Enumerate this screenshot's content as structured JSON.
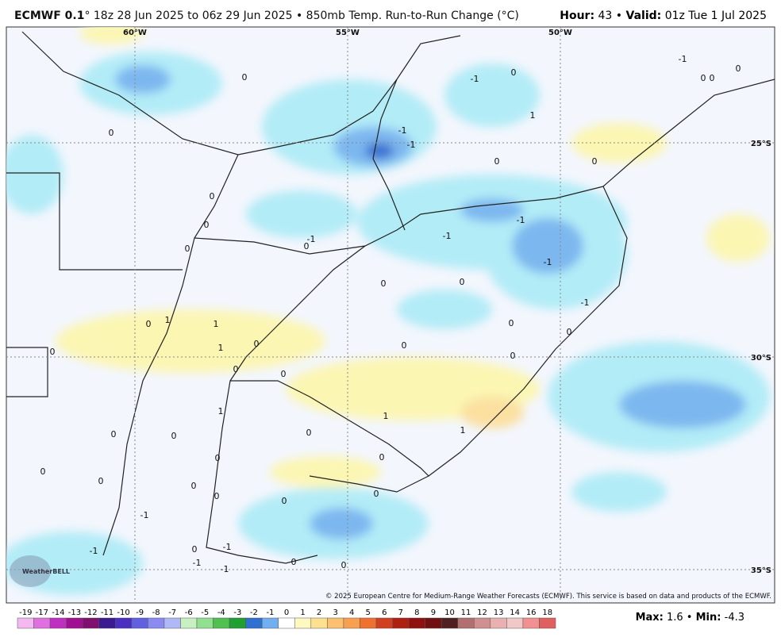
{
  "header": {
    "model": "ECMWF 0.1",
    "title": "° 18z 28 Jun 2025 to 06z 29 Jun 2025 • 850mb Temp. Run-to-Run Change (°C)",
    "hour_label": "Hour:",
    "hour": "43 •",
    "valid_label": "Valid:",
    "valid": "01z Tue 1 Jul 2025"
  },
  "map": {
    "lon_labels": [
      "60°W",
      "55°W",
      "50°W"
    ],
    "lat_labels": [
      "25°S",
      "30°S",
      "35°S"
    ],
    "contour_labels": [
      "0",
      "0",
      "0",
      "0",
      "0",
      "0",
      "1",
      "1",
      "1",
      "0",
      "0",
      "0",
      "0",
      "0",
      "0",
      "0",
      "0",
      "0",
      "0",
      "-1",
      "-1",
      "-1",
      "-1",
      "-1",
      "0",
      "-1",
      "-1",
      "0",
      "0",
      "-1",
      "0",
      "1",
      "-1",
      "0",
      "0",
      "0",
      "1",
      "1",
      "0",
      "0",
      "0",
      "0",
      "0",
      "0",
      "0",
      "0",
      "0",
      "0",
      "0",
      "-1",
      "-1",
      "-1",
      "-1",
      "0",
      "0",
      "0",
      "-1",
      "1"
    ],
    "copyright": "© 2025 European Centre for Medium-Range Weather Forecasts (ECMWF). This service is based on data and products of the ECMWF.",
    "logo": "WeatherBELL"
  },
  "colorbar": {
    "labels": [
      "-19",
      "-17",
      "-14",
      "-13",
      "-12",
      "-11",
      "-10",
      "-9",
      "-8",
      "-7",
      "-6",
      "-5",
      "-4",
      "-3",
      "-2",
      "-1",
      "0",
      "1",
      "2",
      "3",
      "4",
      "5",
      "6",
      "7",
      "8",
      "9",
      "10",
      "11",
      "12",
      "13",
      "14",
      "16",
      "18"
    ],
    "colors": [
      "#f4b8f0",
      "#e070e0",
      "#c030c0",
      "#a01090",
      "#801070",
      "#3a1a90",
      "#4a30c0",
      "#6060e0",
      "#8a8af0",
      "#b0b8f8",
      "#c8f0c0",
      "#90e090",
      "#50c050",
      "#20a030",
      "#3070d0",
      "#70b0f0",
      "#ffffff",
      "#fff8c0",
      "#fde090",
      "#fbc070",
      "#f8a050",
      "#f07030",
      "#d04020",
      "#b02010",
      "#901010",
      "#701010",
      "#502020",
      "#b07070",
      "#d09090",
      "#e8b0b0",
      "#f0c8c8",
      "#f09090",
      "#e06060"
    ],
    "max_label": "Max:",
    "max": "1.6 •",
    "min_label": "Min:",
    "min": "-4.3"
  }
}
